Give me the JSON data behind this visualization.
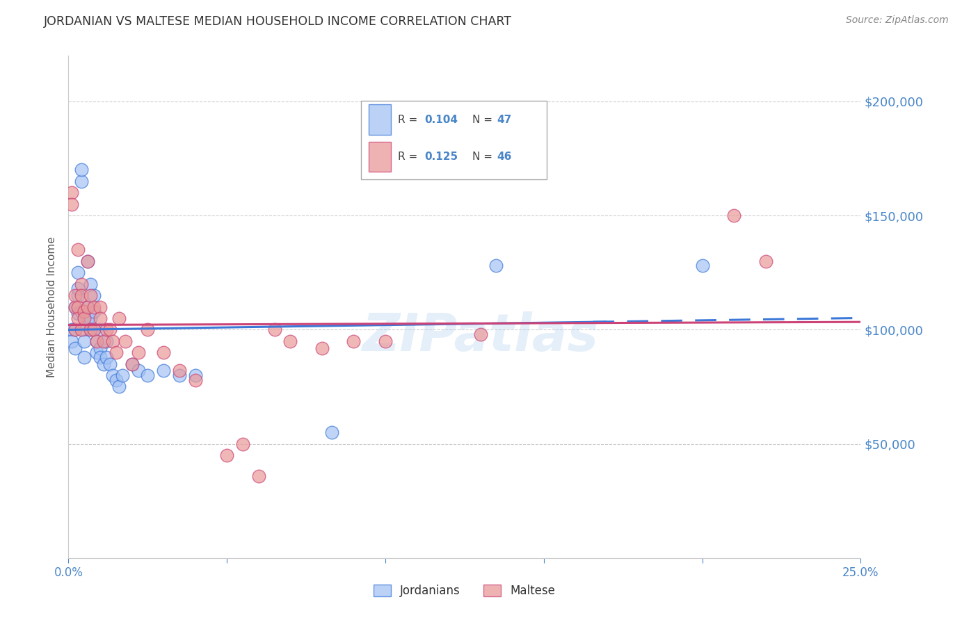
{
  "title": "JORDANIAN VS MALTESE MEDIAN HOUSEHOLD INCOME CORRELATION CHART",
  "source": "Source: ZipAtlas.com",
  "ylabel": "Median Household Income",
  "xlim": [
    0.0,
    0.25
  ],
  "ylim": [
    0,
    220000
  ],
  "yticks": [
    0,
    50000,
    100000,
    150000,
    200000
  ],
  "ytick_labels": [
    "",
    "$50,000",
    "$100,000",
    "$150,000",
    "$200,000"
  ],
  "xticks": [
    0.0,
    0.05,
    0.1,
    0.15,
    0.2,
    0.25
  ],
  "xtick_labels": [
    "0.0%",
    "",
    "",
    "",
    "",
    "25.0%"
  ],
  "jordanians_R": 0.104,
  "jordanians_N": 47,
  "maltese_R": 0.125,
  "maltese_N": 46,
  "blue_color": "#a4c2f4",
  "pink_color": "#ea9999",
  "blue_line_color": "#3c78d8",
  "pink_line_color": "#cc4477",
  "axis_color": "#4a86c8",
  "watermark": "ZIPatlas",
  "jordanians_x": [
    0.001,
    0.001,
    0.002,
    0.002,
    0.002,
    0.003,
    0.003,
    0.003,
    0.003,
    0.004,
    0.004,
    0.004,
    0.005,
    0.005,
    0.005,
    0.005,
    0.006,
    0.006,
    0.006,
    0.007,
    0.007,
    0.007,
    0.008,
    0.008,
    0.008,
    0.009,
    0.009,
    0.01,
    0.01,
    0.01,
    0.011,
    0.012,
    0.012,
    0.013,
    0.014,
    0.015,
    0.016,
    0.017,
    0.02,
    0.022,
    0.025,
    0.03,
    0.035,
    0.04,
    0.083,
    0.135,
    0.2
  ],
  "jordanians_y": [
    100000,
    95000,
    110000,
    100000,
    92000,
    107000,
    115000,
    125000,
    118000,
    165000,
    170000,
    108000,
    105000,
    100000,
    95000,
    88000,
    130000,
    110000,
    105000,
    120000,
    105000,
    100000,
    115000,
    108000,
    100000,
    95000,
    90000,
    100000,
    92000,
    88000,
    85000,
    95000,
    88000,
    85000,
    80000,
    78000,
    75000,
    80000,
    85000,
    82000,
    80000,
    82000,
    80000,
    80000,
    55000,
    128000,
    128000
  ],
  "maltese_x": [
    0.001,
    0.001,
    0.002,
    0.002,
    0.002,
    0.003,
    0.003,
    0.003,
    0.004,
    0.004,
    0.004,
    0.005,
    0.005,
    0.006,
    0.006,
    0.007,
    0.007,
    0.008,
    0.008,
    0.009,
    0.01,
    0.01,
    0.011,
    0.012,
    0.013,
    0.014,
    0.015,
    0.016,
    0.018,
    0.02,
    0.022,
    0.025,
    0.03,
    0.035,
    0.04,
    0.05,
    0.055,
    0.06,
    0.065,
    0.07,
    0.08,
    0.09,
    0.1,
    0.13,
    0.21,
    0.22
  ],
  "maltese_y": [
    160000,
    155000,
    110000,
    100000,
    115000,
    135000,
    110000,
    105000,
    120000,
    115000,
    100000,
    108000,
    105000,
    130000,
    110000,
    115000,
    100000,
    110000,
    100000,
    95000,
    110000,
    105000,
    95000,
    100000,
    100000,
    95000,
    90000,
    105000,
    95000,
    85000,
    90000,
    100000,
    90000,
    82000,
    78000,
    45000,
    50000,
    36000,
    100000,
    95000,
    92000,
    95000,
    95000,
    98000,
    150000,
    130000
  ]
}
